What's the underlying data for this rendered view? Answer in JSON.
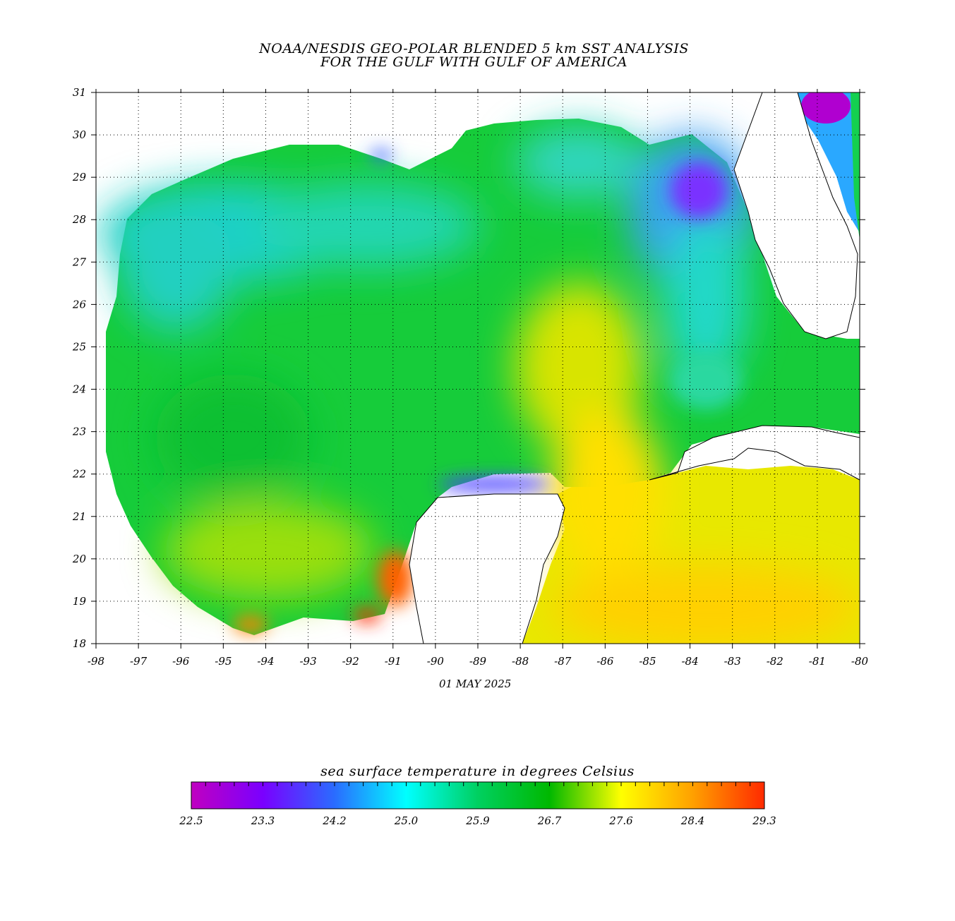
{
  "title_line1": "NOAA/NESDIS GEO-POLAR BLENDED 5 km SST ANALYSIS",
  "title_line2": "FOR THE GULF WITH GULF OF AMERICA",
  "date": "01 MAY 2025",
  "colorbar": {
    "label": "sea surface temperature in degrees Celsius",
    "ticks": [
      "22.5",
      "23.3",
      "24.2",
      "25.0",
      "25.9",
      "26.7",
      "27.6",
      "28.4",
      "29.3"
    ],
    "colors": [
      "#c000c0",
      "#7a00ff",
      "#2a6cff",
      "#00ffff",
      "#00d060",
      "#00b800",
      "#ffff00",
      "#ffa000",
      "#ff2a00"
    ]
  },
  "map": {
    "lon_range": [
      -98,
      -80
    ],
    "lat_range": [
      18,
      31
    ],
    "lon_labels": [
      "-98",
      "-97",
      "-96",
      "-95",
      "-94",
      "-93",
      "-92",
      "-91",
      "-90",
      "-89",
      "-88",
      "-87",
      "-86",
      "-85",
      "-84",
      "-83",
      "-82",
      "-81",
      "-80"
    ],
    "lat_labels": [
      "31",
      "30",
      "29",
      "28",
      "27",
      "26",
      "25",
      "24",
      "23",
      "22",
      "21",
      "20",
      "19",
      "18"
    ]
  }
}
